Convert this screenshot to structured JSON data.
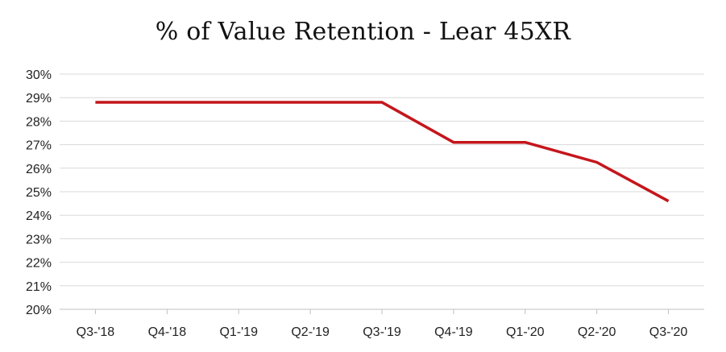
{
  "chart_data": {
    "type": "line",
    "title": "% of Value Retention - Lear 45XR",
    "xlabel": "",
    "ylabel": "",
    "categories": [
      "Q3-'18",
      "Q4-'18",
      "Q1-'19",
      "Q2-'19",
      "Q3-'19",
      "Q4-'19",
      "Q1-'20",
      "Q2-'20",
      "Q3-'20"
    ],
    "series": [
      {
        "values": [
          28.8,
          28.8,
          28.8,
          28.8,
          28.8,
          27.1,
          27.1,
          26.25,
          24.6
        ],
        "color": "#c4161c"
      }
    ],
    "ylim": [
      20,
      30
    ],
    "yticks": [
      "20%",
      "21%",
      "22%",
      "23%",
      "24%",
      "25%",
      "26%",
      "27%",
      "28%",
      "29%",
      "30%"
    ],
    "grid": true,
    "legend": "none",
    "colors": {
      "line": "#c4161c",
      "grid": "#d9d9d9",
      "axis": "#bfbfbf"
    }
  }
}
